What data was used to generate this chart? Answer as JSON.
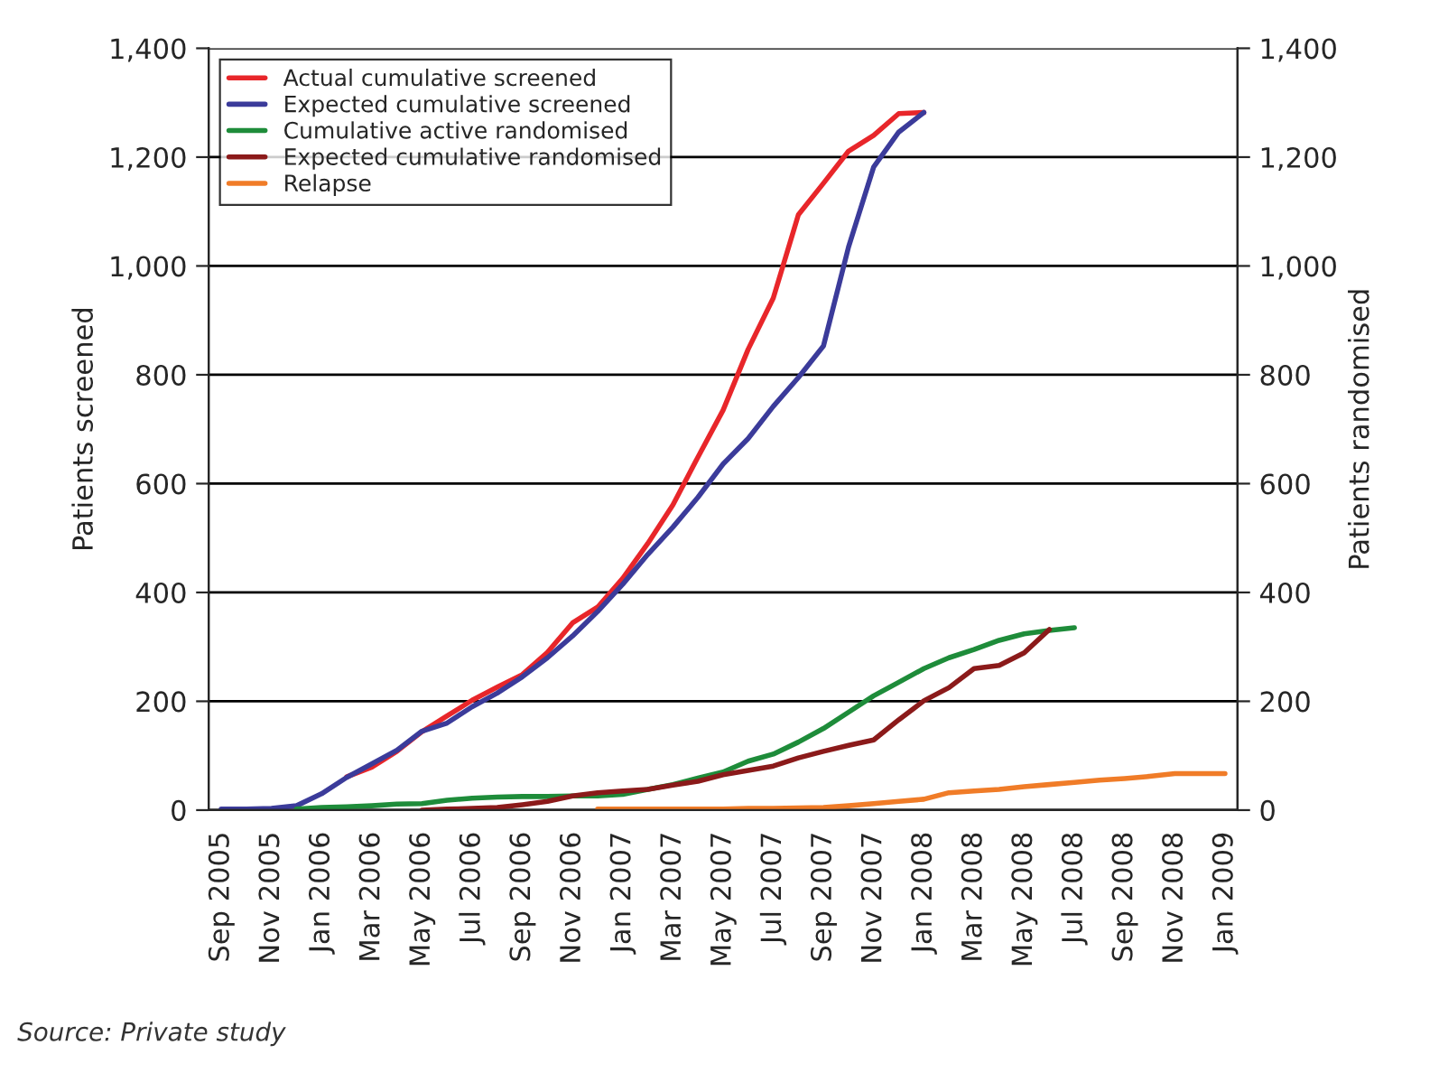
{
  "chart_data": {
    "type": "line",
    "categories": [
      "Sep 2005",
      null,
      "Nov 2005",
      null,
      "Jan 2006",
      null,
      "Mar 2006",
      null,
      "May 2006",
      null,
      "Jul 2006",
      null,
      "Sep 2006",
      null,
      "Nov 2006",
      null,
      "Jan 2007",
      null,
      "Mar 2007",
      null,
      "May 2007",
      null,
      "Jul 2007",
      null,
      "Sep 2007",
      null,
      "Nov 2007",
      null,
      "Jan 2008",
      null,
      "Mar 2008",
      null,
      "May 2008",
      null,
      "Jul 2008",
      null,
      "Sep 2008",
      null,
      "Nov 2008",
      null,
      "Jan 2009"
    ],
    "series": [
      {
        "name": "Actual cumulative screened",
        "color": "#e8262a",
        "values": [
          null,
          null,
          null,
          null,
          null,
          61,
          79,
          108,
          144,
          173,
          202,
          226,
          249,
          290,
          344,
          373,
          426,
          490,
          561,
          649,
          735,
          847,
          941,
          1094,
          1152,
          1211,
          1240,
          1280,
          1282,
          null,
          null,
          null,
          null,
          null,
          null,
          null,
          null,
          null,
          null,
          null,
          null
        ]
      },
      {
        "name": "Expected cumulative screened",
        "color": "#3b3b9a",
        "values": [
          2,
          2,
          3,
          8,
          30,
          60,
          85,
          110,
          145,
          160,
          190,
          215,
          245,
          280,
          320,
          365,
          415,
          470,
          520,
          575,
          636,
          683,
          742,
          795,
          853,
          1035,
          1182,
          1246,
          1282,
          null,
          null,
          null,
          null,
          null,
          null,
          null,
          null,
          null,
          null,
          null,
          null
        ]
      },
      {
        "name": "Cumulative active randomised",
        "color": "#1e8c3a",
        "axis": "y2",
        "values": [
          null,
          null,
          null,
          2,
          5,
          6,
          8,
          11,
          12,
          18,
          22,
          24,
          25,
          25,
          26,
          26,
          29,
          38,
          47,
          59,
          70,
          90,
          103,
          125,
          150,
          180,
          210,
          235,
          260,
          280,
          295,
          312,
          324,
          330,
          335,
          null,
          null,
          null,
          null,
          null,
          null
        ]
      },
      {
        "name": "Expected cumulative randomised",
        "color": "#8b1a1a",
        "axis": "y2",
        "values": [
          null,
          null,
          null,
          null,
          null,
          null,
          null,
          null,
          0,
          2,
          3,
          5,
          10,
          16,
          26,
          32,
          35,
          38,
          46,
          53,
          65,
          73,
          81,
          96,
          108,
          119,
          129,
          166,
          201,
          225,
          260,
          266,
          289,
          332,
          null,
          null,
          null,
          null,
          null,
          null,
          null
        ]
      },
      {
        "name": "Relapse",
        "color": "#f07c28",
        "axis": "y2",
        "values": [
          null,
          null,
          null,
          null,
          null,
          null,
          null,
          null,
          null,
          null,
          null,
          null,
          null,
          null,
          null,
          2,
          2,
          2,
          2,
          2,
          2,
          3,
          3,
          4,
          5,
          8,
          12,
          16,
          20,
          32,
          35,
          38,
          43,
          47,
          51,
          55,
          58,
          62,
          67,
          67,
          67
        ]
      }
    ],
    "ylabel": "Patients screened",
    "y2label": "Patients randomised",
    "ylim": [
      0,
      1400
    ],
    "yticks": [
      0,
      200,
      400,
      600,
      800,
      {
        "value": 1000,
        "label": "1,000"
      },
      {
        "value": 1200,
        "label": "1,200"
      },
      {
        "value": 1400,
        "label": "1,400"
      }
    ],
    "y2lim": [
      0,
      1400
    ],
    "y2ticks": [
      0,
      200,
      400,
      600,
      800,
      {
        "value": 1000,
        "label": "1,000"
      },
      {
        "value": 1200,
        "label": "1,200"
      },
      {
        "value": 1400,
        "label": "1,400"
      }
    ],
    "grid": "y",
    "legend": "top left",
    "marker": "none",
    "line_style": "solid",
    "annotations": [
      "Source: Private study"
    ]
  }
}
